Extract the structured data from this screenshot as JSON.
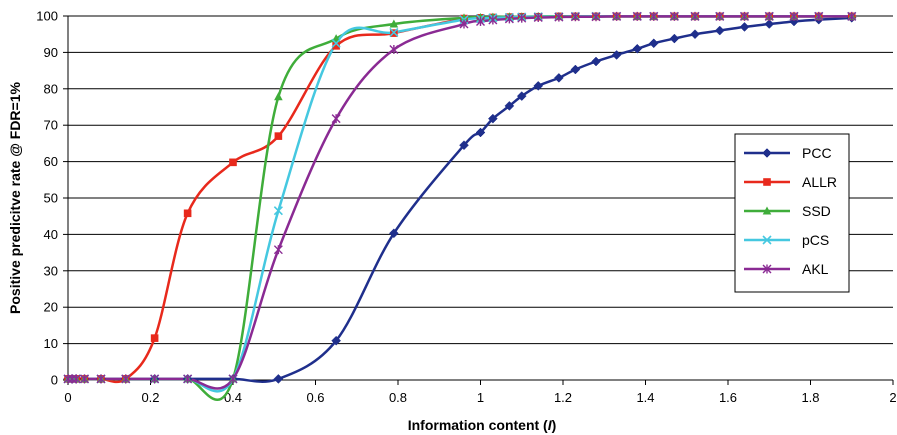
{
  "chart_data": {
    "type": "line",
    "title": "",
    "xlabel_main": "Information content (",
    "xlabel_italic": "I",
    "xlabel_close": ")",
    "ylabel": "Positive predicitve rate @ FDR=1%",
    "xlim": [
      0,
      2
    ],
    "ylim": [
      0,
      100
    ],
    "x_ticks": [
      "0",
      "0.2",
      "0.4",
      "0.6",
      "0.8",
      "1",
      "1.2",
      "1.4",
      "1.6",
      "1.8",
      "2"
    ],
    "y_ticks": [
      "0",
      "10",
      "20",
      "30",
      "40",
      "50",
      "60",
      "70",
      "80",
      "90",
      "100"
    ],
    "grid": "horizontal",
    "legend_position": "right",
    "series": [
      {
        "name": "PCC",
        "color": "#1f2f8c",
        "marker": "diamond",
        "points": [
          [
            0,
            0.3
          ],
          [
            0.01,
            0.3
          ],
          [
            0.02,
            0.3
          ],
          [
            0.04,
            0.3
          ],
          [
            0.08,
            0.3
          ],
          [
            0.14,
            0.3
          ],
          [
            0.21,
            0.3
          ],
          [
            0.29,
            0.3
          ],
          [
            0.4,
            0.3
          ],
          [
            0.51,
            0.3
          ],
          [
            0.65,
            10.8
          ],
          [
            0.79,
            40.3
          ],
          [
            0.96,
            64.5
          ],
          [
            1.0,
            68.0
          ],
          [
            1.03,
            71.8
          ],
          [
            1.07,
            75.3
          ],
          [
            1.1,
            78.0
          ],
          [
            1.14,
            80.8
          ],
          [
            1.19,
            83.0
          ],
          [
            1.23,
            85.3
          ],
          [
            1.28,
            87.5
          ],
          [
            1.33,
            89.3
          ],
          [
            1.38,
            91.0
          ],
          [
            1.42,
            92.5
          ],
          [
            1.47,
            93.8
          ],
          [
            1.52,
            95.0
          ],
          [
            1.58,
            96.0
          ],
          [
            1.64,
            97.0
          ],
          [
            1.7,
            97.8
          ],
          [
            1.76,
            98.5
          ],
          [
            1.82,
            99.0
          ],
          [
            1.9,
            99.5
          ]
        ]
      },
      {
        "name": "ALLR",
        "color": "#e8291c",
        "marker": "square",
        "points": [
          [
            0,
            0.3
          ],
          [
            0.01,
            0.3
          ],
          [
            0.02,
            0.3
          ],
          [
            0.04,
            0.3
          ],
          [
            0.08,
            0.3
          ],
          [
            0.14,
            0.3
          ],
          [
            0.21,
            11.5
          ],
          [
            0.29,
            45.8
          ],
          [
            0.4,
            59.8
          ],
          [
            0.51,
            67.0
          ],
          [
            0.65,
            91.8
          ],
          [
            0.79,
            95.3
          ],
          [
            0.96,
            99.3
          ],
          [
            1.0,
            99.5
          ],
          [
            1.03,
            99.6
          ],
          [
            1.07,
            99.7
          ],
          [
            1.1,
            99.8
          ],
          [
            1.14,
            99.8
          ],
          [
            1.19,
            99.9
          ],
          [
            1.23,
            99.9
          ],
          [
            1.28,
            99.9
          ],
          [
            1.33,
            99.9
          ],
          [
            1.38,
            99.9
          ],
          [
            1.42,
            99.9
          ],
          [
            1.47,
            99.9
          ],
          [
            1.52,
            99.9
          ],
          [
            1.58,
            99.9
          ],
          [
            1.64,
            99.9
          ],
          [
            1.7,
            99.9
          ],
          [
            1.76,
            99.9
          ],
          [
            1.82,
            99.9
          ],
          [
            1.9,
            99.9
          ]
        ]
      },
      {
        "name": "SSD",
        "color": "#3fad3a",
        "marker": "triangle",
        "points": [
          [
            0,
            0.3
          ],
          [
            0.01,
            0.3
          ],
          [
            0.02,
            0.3
          ],
          [
            0.04,
            0.3
          ],
          [
            0.08,
            0.3
          ],
          [
            0.14,
            0.3
          ],
          [
            0.21,
            0.3
          ],
          [
            0.29,
            0.3
          ],
          [
            0.4,
            0.3
          ],
          [
            0.51,
            77.8
          ],
          [
            0.65,
            93.8
          ],
          [
            0.79,
            97.8
          ],
          [
            0.96,
            99.5
          ],
          [
            1.0,
            99.6
          ],
          [
            1.03,
            99.7
          ],
          [
            1.07,
            99.8
          ],
          [
            1.1,
            99.8
          ],
          [
            1.14,
            99.9
          ],
          [
            1.19,
            99.9
          ],
          [
            1.23,
            99.9
          ],
          [
            1.28,
            99.9
          ],
          [
            1.33,
            99.9
          ],
          [
            1.38,
            99.9
          ],
          [
            1.42,
            99.9
          ],
          [
            1.47,
            99.9
          ],
          [
            1.52,
            99.9
          ],
          [
            1.58,
            99.9
          ],
          [
            1.64,
            99.9
          ],
          [
            1.7,
            99.9
          ],
          [
            1.76,
            99.9
          ],
          [
            1.82,
            99.9
          ],
          [
            1.9,
            99.9
          ]
        ]
      },
      {
        "name": "pCS",
        "color": "#45c8e0",
        "marker": "x",
        "points": [
          [
            0,
            0.3
          ],
          [
            0.01,
            0.3
          ],
          [
            0.02,
            0.3
          ],
          [
            0.04,
            0.3
          ],
          [
            0.08,
            0.3
          ],
          [
            0.14,
            0.3
          ],
          [
            0.21,
            0.3
          ],
          [
            0.29,
            0.3
          ],
          [
            0.4,
            0.3
          ],
          [
            0.51,
            46.5
          ],
          [
            0.65,
            92.5
          ],
          [
            0.79,
            95.5
          ],
          [
            0.96,
            99.0
          ],
          [
            1.0,
            99.3
          ],
          [
            1.03,
            99.5
          ],
          [
            1.07,
            99.6
          ],
          [
            1.1,
            99.7
          ],
          [
            1.14,
            99.8
          ],
          [
            1.19,
            99.8
          ],
          [
            1.23,
            99.9
          ],
          [
            1.28,
            99.9
          ],
          [
            1.33,
            99.9
          ],
          [
            1.38,
            99.9
          ],
          [
            1.42,
            99.9
          ],
          [
            1.47,
            99.9
          ],
          [
            1.52,
            99.9
          ],
          [
            1.58,
            99.9
          ],
          [
            1.64,
            99.9
          ],
          [
            1.7,
            99.9
          ],
          [
            1.76,
            99.9
          ],
          [
            1.82,
            99.9
          ],
          [
            1.9,
            99.9
          ]
        ]
      },
      {
        "name": "AKL",
        "color": "#8a2a93",
        "marker": "star",
        "points": [
          [
            0,
            0.3
          ],
          [
            0.01,
            0.3
          ],
          [
            0.02,
            0.3
          ],
          [
            0.04,
            0.3
          ],
          [
            0.08,
            0.3
          ],
          [
            0.14,
            0.3
          ],
          [
            0.21,
            0.3
          ],
          [
            0.29,
            0.3
          ],
          [
            0.4,
            0.3
          ],
          [
            0.51,
            35.8
          ],
          [
            0.65,
            71.8
          ],
          [
            0.79,
            90.8
          ],
          [
            0.96,
            97.8
          ],
          [
            1.0,
            98.5
          ],
          [
            1.03,
            98.9
          ],
          [
            1.07,
            99.2
          ],
          [
            1.1,
            99.4
          ],
          [
            1.14,
            99.6
          ],
          [
            1.19,
            99.7
          ],
          [
            1.23,
            99.8
          ],
          [
            1.28,
            99.8
          ],
          [
            1.33,
            99.9
          ],
          [
            1.38,
            99.9
          ],
          [
            1.42,
            99.9
          ],
          [
            1.47,
            99.9
          ],
          [
            1.52,
            99.9
          ],
          [
            1.58,
            99.9
          ],
          [
            1.64,
            99.9
          ],
          [
            1.7,
            99.9
          ],
          [
            1.76,
            99.9
          ],
          [
            1.82,
            99.9
          ],
          [
            1.9,
            99.9
          ]
        ]
      }
    ]
  }
}
